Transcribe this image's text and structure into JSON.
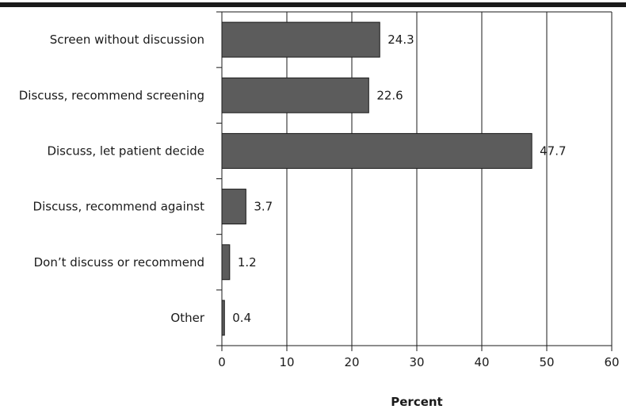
{
  "chart_data": {
    "type": "bar",
    "orientation": "horizontal",
    "title": "",
    "xlabel": "Percent",
    "ylabel": "",
    "categories": [
      "Screen without discussion",
      "Discuss, recommend screening",
      "Discuss, let patient decide",
      "Discuss, recommend against",
      "Don’t discuss or recommend",
      "Other"
    ],
    "values": [
      24.3,
      22.6,
      47.7,
      3.7,
      1.2,
      0.4
    ],
    "value_labels": [
      "24.3",
      "22.6",
      "47.7",
      "3.7",
      "1.2",
      "0.4"
    ],
    "xlim": [
      0,
      60
    ],
    "xticks": [
      0,
      10,
      20,
      30,
      40,
      50,
      60
    ],
    "xtick_labels": [
      "0",
      "10",
      "20",
      "30",
      "40",
      "50",
      "60"
    ],
    "grid": "vertical",
    "legend": "none",
    "colors": {
      "bar_fill": "#5c5c5c",
      "bar_stroke": "#1a1a1a",
      "axis": "#1a1a1a",
      "top_rule": "#1a1a1a"
    }
  }
}
